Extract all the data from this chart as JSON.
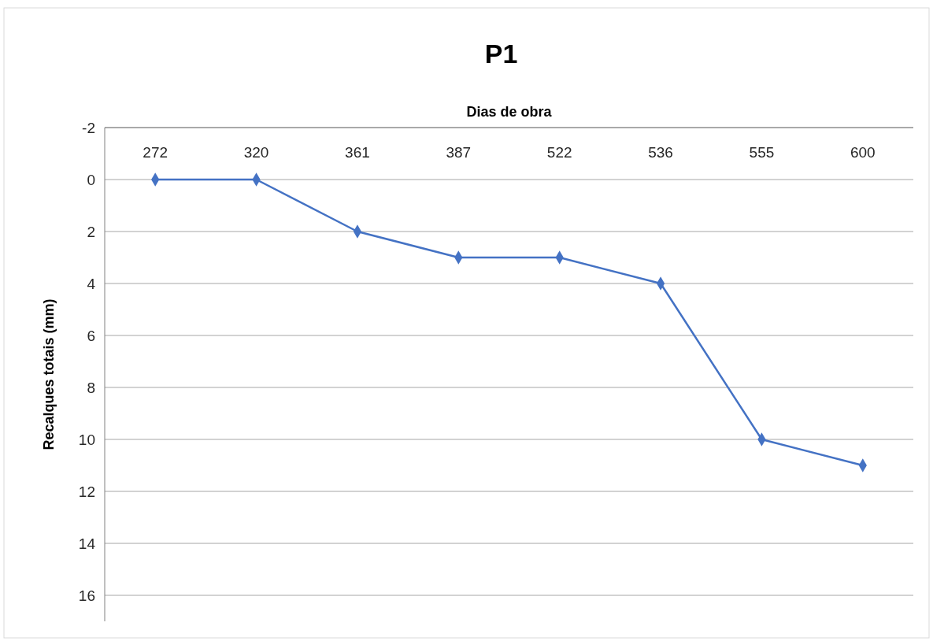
{
  "chart_data": {
    "type": "line",
    "title": "P1",
    "xlabel": "Dias de obra",
    "ylabel": "Recalques totais (mm)",
    "categories": [
      "272",
      "320",
      "361",
      "387",
      "522",
      "536",
      "555",
      "600"
    ],
    "series": [
      {
        "color": "#4472c4",
        "values": [
          0,
          0,
          2,
          3,
          3,
          4,
          10,
          11
        ]
      }
    ],
    "ylim": [
      17,
      -2
    ],
    "yticks": [
      -2,
      0,
      2,
      4,
      6,
      8,
      10,
      12,
      14,
      16
    ],
    "grid": "y",
    "marker": "diamond",
    "line_style": "solid"
  }
}
